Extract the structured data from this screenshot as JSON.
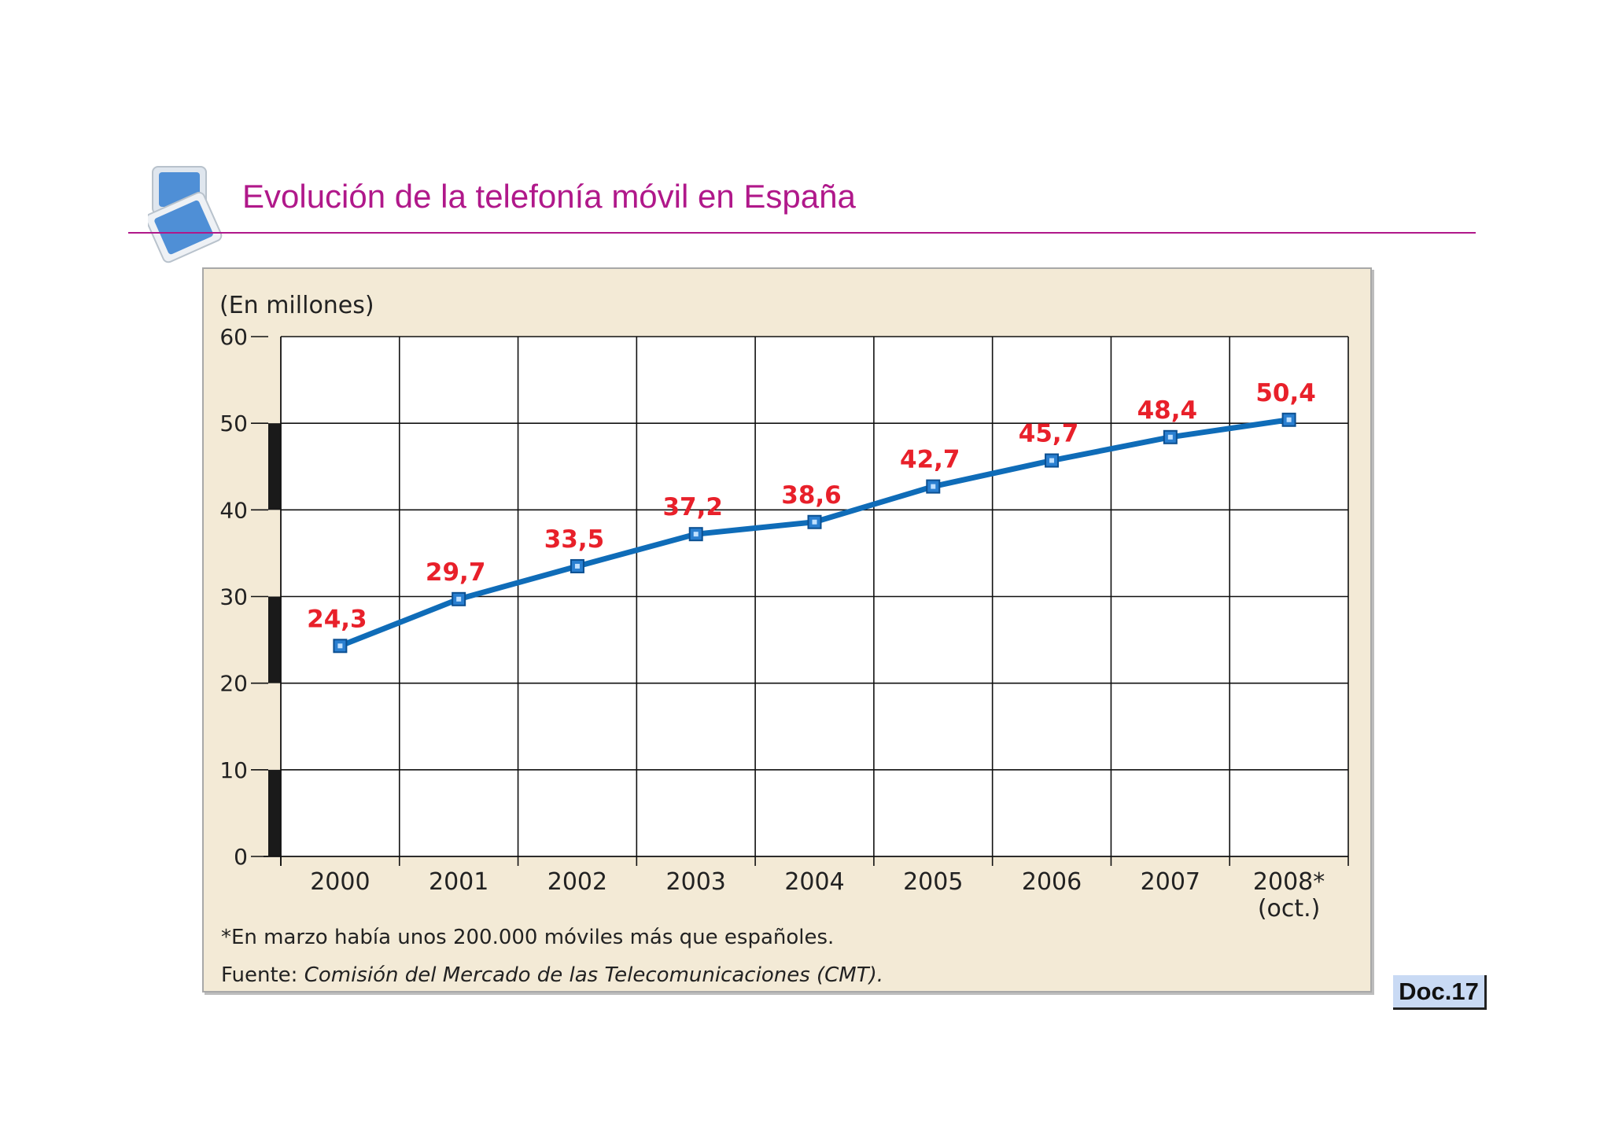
{
  "header": {
    "title": "Evolución de la telefonía móvil en España",
    "logo_icon": "presentation-windows-icon",
    "accent_color": "#b0188a"
  },
  "badge": {
    "label": "Doc.17",
    "background": "#c9daf4"
  },
  "chart_data": {
    "type": "line",
    "unit_label": "(En millones)",
    "title": "",
    "xlabel": "",
    "ylabel": "",
    "categories": [
      "2000",
      "2001",
      "2002",
      "2003",
      "2004",
      "2005",
      "2006",
      "2007",
      "2008*"
    ],
    "category_sublabels": [
      "",
      "",
      "",
      "",
      "",
      "",
      "",
      "",
      "(oct.)"
    ],
    "series": [
      {
        "values": [
          24.3,
          29.7,
          33.5,
          37.2,
          38.6,
          42.7,
          45.7,
          48.4,
          50.4
        ],
        "color": "#0f6cb8"
      }
    ],
    "data_labels": [
      "24,3",
      "29,7",
      "33,5",
      "37,2",
      "38,6",
      "42,7",
      "45,7",
      "48,4",
      "50,4"
    ],
    "data_label_color": "#e8202a",
    "ylim": [
      0,
      60
    ],
    "yticks": [
      0,
      10,
      20,
      30,
      40,
      50,
      60
    ],
    "grid": true,
    "legend": "none",
    "footnote": "*En marzo había unos 200.000 móviles más que españoles.",
    "source_prefix": "Fuente: ",
    "source_text": "Comisión del Mercado de las Telecomunicaciones (CMT).",
    "background_color": "#f3ead6"
  }
}
